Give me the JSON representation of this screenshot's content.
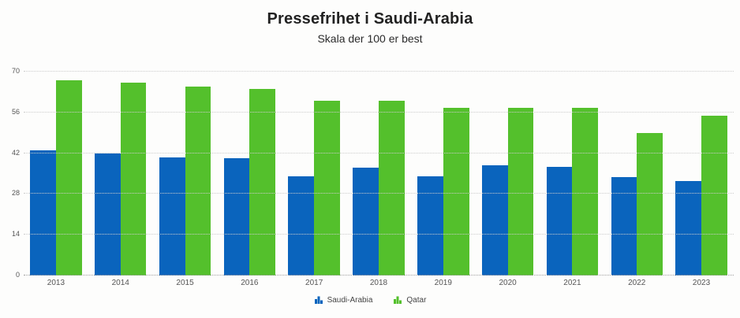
{
  "header": {
    "title": "Pressefrihet i Saudi-Arabia",
    "subtitle": "Skala der 100 er best"
  },
  "colors": {
    "saudi_arabia_blue": "#0a64bd",
    "qatar_green": "#54c02c",
    "gridline": "#cccccc",
    "axis_text": "#555555",
    "title_text": "#222222"
  },
  "legend": {
    "items": [
      {
        "label": "Saudi-Arabia",
        "color": "#0a64bd",
        "icon": "bar-chart-icon"
      },
      {
        "label": "Qatar",
        "color": "#54c02c",
        "icon": "bar-chart-icon"
      }
    ]
  },
  "chart_data": {
    "type": "bar",
    "title": "Pressefrihet i Saudi-Arabia",
    "subtitle": "Skala der 100 er best",
    "categories": [
      "2013",
      "2014",
      "2015",
      "2016",
      "2017",
      "2018",
      "2019",
      "2020",
      "2021",
      "2022",
      "2023"
    ],
    "series": [
      {
        "name": "Saudi-Arabia",
        "color": "#0a64bd",
        "values": [
          43.1,
          41.9,
          40.6,
          40.3,
          34.0,
          36.9,
          34.1,
          37.9,
          37.3,
          33.7,
          32.4
        ]
      },
      {
        "name": "Qatar",
        "color": "#54c02c",
        "values": [
          67.1,
          66.2,
          65.0,
          64.1,
          60.1,
          60.1,
          57.5,
          57.5,
          57.5,
          48.9,
          55.0
        ]
      }
    ],
    "xlabel": "",
    "ylabel": "",
    "ylim": [
      0,
      70
    ],
    "yticks": [
      0,
      14,
      28,
      42,
      56,
      70
    ],
    "grid": "horizontal-dotted",
    "legend_position": "bottom"
  }
}
